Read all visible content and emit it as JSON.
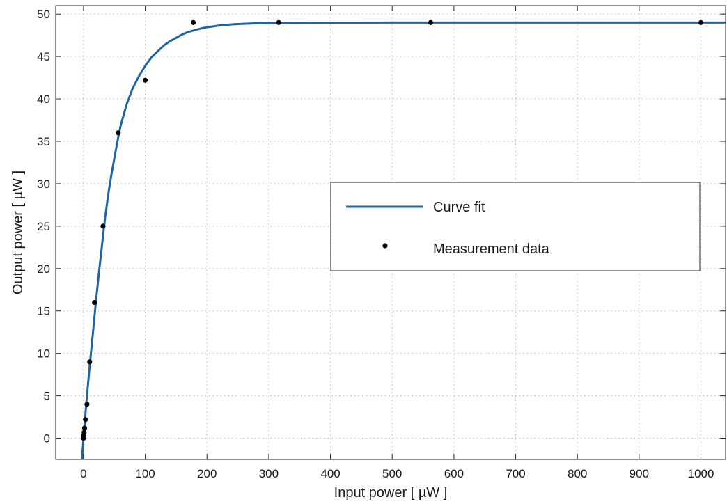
{
  "chart_data": {
    "type": "scatter",
    "xlabel": "Input power [ µW ]",
    "ylabel": "Output power [ µW ]",
    "xlim": [
      -45,
      1040
    ],
    "ylim": [
      -2.5,
      51
    ],
    "xticks": [
      0,
      100,
      200,
      300,
      400,
      500,
      600,
      700,
      800,
      900,
      1000
    ],
    "yticks": [
      0,
      5,
      10,
      15,
      20,
      25,
      30,
      35,
      40,
      45,
      50
    ],
    "grid": true,
    "legend_position": "center-right",
    "series": [
      {
        "name": "Curve fit",
        "kind": "line",
        "color": "#1f64a4",
        "x": [
          -2.5,
          0,
          5,
          10,
          15,
          20,
          25,
          30,
          35,
          40,
          45,
          50,
          55,
          60,
          70,
          80,
          90,
          100,
          110,
          120,
          130,
          140,
          150,
          160,
          170,
          180,
          190,
          200,
          220,
          240,
          260,
          280,
          300,
          350,
          400,
          500,
          600,
          700,
          800,
          900,
          1000,
          1040
        ],
        "y": [
          -2.5,
          0.0,
          4.5,
          8.5,
          12.2,
          16.0,
          19.5,
          22.8,
          26.0,
          28.7,
          31.0,
          33.0,
          35.0,
          36.8,
          39.4,
          41.3,
          42.7,
          43.9,
          44.9,
          45.6,
          46.3,
          46.8,
          47.2,
          47.6,
          47.9,
          48.1,
          48.3,
          48.45,
          48.65,
          48.78,
          48.86,
          48.92,
          48.95,
          48.98,
          48.99,
          49.0,
          49.0,
          49.0,
          49.0,
          49.0,
          49.0,
          49.0
        ]
      },
      {
        "name": "Measurement data",
        "kind": "scatter",
        "color": "#000000",
        "x": [
          0,
          0.3,
          1,
          1.8,
          3.2,
          5.6,
          10,
          17.8,
          31.6,
          56.2,
          100,
          177.8,
          316.2,
          562.3,
          1000
        ],
        "y": [
          0.0,
          0.3,
          0.7,
          1.2,
          2.2,
          4.0,
          9.0,
          16.0,
          25.0,
          36.0,
          42.2,
          49.0,
          49.0,
          49.0,
          49.0
        ]
      }
    ]
  }
}
